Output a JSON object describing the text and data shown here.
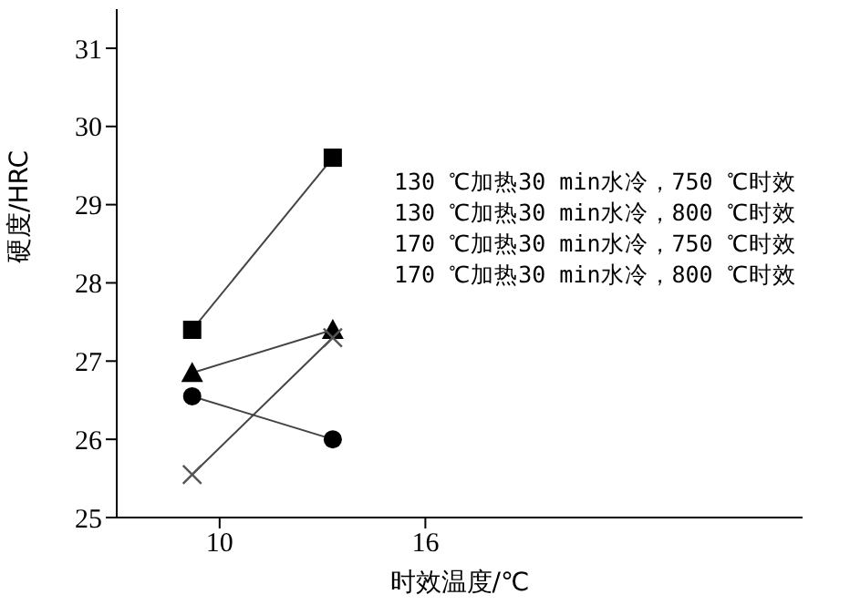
{
  "chart_data": {
    "type": "line",
    "xlabel": "时效温度/℃",
    "ylabel": "硬度/HRC",
    "xlim": [
      7,
      27
    ],
    "xticks": [
      10,
      16
    ],
    "ylim": [
      25,
      31.5
    ],
    "yticks": [
      25,
      26,
      27,
      28,
      29,
      30,
      31
    ],
    "grid": false,
    "legend": false,
    "x": [
      9.2,
      13.3
    ],
    "series": [
      {
        "color": "#000000",
        "marker": "square",
        "values": [
          27.4,
          29.6
        ]
      },
      {
        "color": "#000000",
        "marker": "triangle",
        "values": [
          26.85,
          27.4
        ]
      },
      {
        "color": "#000000",
        "marker": "circle",
        "values": [
          26.55,
          26.0
        ]
      },
      {
        "color": "#555555",
        "marker": "cross",
        "values": [
          25.55,
          27.3
        ]
      }
    ],
    "annotations": [
      "130 ℃加热30 min水冷，750 ℃时效",
      "130 ℃加热30 min水冷，800 ℃时效",
      "170 ℃加热30 min水冷，750 ℃时效",
      "170 ℃加热30 min水冷，800 ℃时效"
    ]
  }
}
